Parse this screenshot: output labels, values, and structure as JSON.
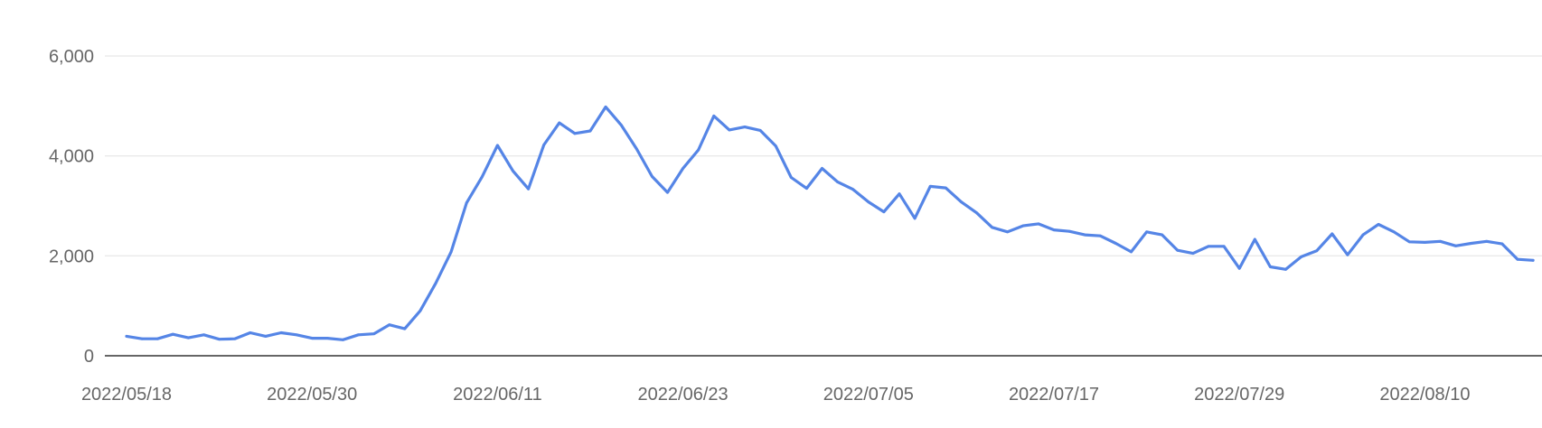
{
  "chart_data": {
    "type": "line",
    "title": "",
    "xlabel": "",
    "ylabel": "",
    "ylim": [
      0,
      6000
    ],
    "grid": true,
    "legend": "none",
    "series_color": "#5585e6",
    "grid_color": "#e6e6e6",
    "axis_color": "#333333",
    "x_start_date": "2022-05-18",
    "x_ticks": [
      "2022/05/18",
      "2022/05/30",
      "2022/06/11",
      "2022/06/23",
      "2022/07/05",
      "2022/07/17",
      "2022/07/29",
      "2022/08/10"
    ],
    "y_ticks": [
      "0",
      "2,000",
      "4,000",
      "6,000"
    ],
    "y_tick_values": [
      0,
      2000,
      4000,
      6000
    ],
    "series": [
      {
        "values": [
          390,
          340,
          340,
          430,
          360,
          420,
          330,
          340,
          460,
          390,
          460,
          420,
          350,
          350,
          320,
          420,
          440,
          620,
          540,
          900,
          1450,
          2080,
          3060,
          3580,
          4210,
          3700,
          3340,
          4220,
          4660,
          4450,
          4500,
          4980,
          4620,
          4140,
          3590,
          3270,
          3750,
          4120,
          4800,
          4520,
          4580,
          4510,
          4200,
          3570,
          3350,
          3750,
          3480,
          3330,
          3080,
          2880,
          3240,
          2750,
          3390,
          3360,
          3080,
          2860,
          2570,
          2480,
          2600,
          2640,
          2520,
          2490,
          2420,
          2400,
          2250,
          2080,
          2480,
          2420,
          2110,
          2050,
          2190,
          2190,
          1750,
          2330,
          1780,
          1730,
          1980,
          2100,
          2440,
          2020,
          2420,
          2630,
          2480,
          2280,
          2270,
          2290,
          2200,
          2250,
          2290,
          2240,
          1930,
          1910
        ]
      }
    ]
  }
}
